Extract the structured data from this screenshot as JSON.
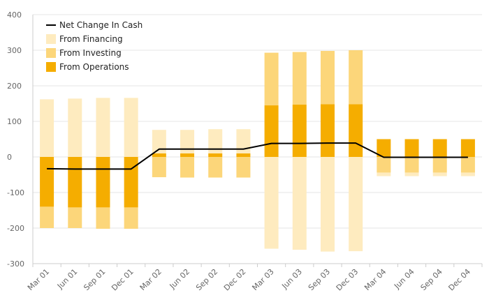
{
  "chart_data": {
    "type": "bar",
    "stacked": true,
    "categories": [
      "Mar 01",
      "Jun 01",
      "Sep 01",
      "Dec 01",
      "Mar 02",
      "Jun 02",
      "Sep 02",
      "Dec 02",
      "Mar 03",
      "Jun 03",
      "Sep 03",
      "Dec 03",
      "Mar 04",
      "Jun 04",
      "Sep 04",
      "Dec 04"
    ],
    "ylim": [
      -300,
      400
    ],
    "yticks": [
      400,
      300,
      200,
      100,
      0,
      -100,
      -200,
      -300
    ],
    "grid": true,
    "legend_position": "top-left",
    "series": [
      {
        "name": "From Operations",
        "kind": "bar",
        "color": "#f5ad00",
        "values": [
          -140,
          -142,
          -142,
          -142,
          10,
          10,
          10,
          10,
          145,
          147,
          148,
          148,
          50,
          50,
          50,
          50
        ]
      },
      {
        "name": "From Investing",
        "kind": "bar",
        "color": "#fcd67a",
        "values": [
          -60,
          -58,
          -60,
          -60,
          -57,
          -58,
          -58,
          -58,
          148,
          148,
          150,
          152,
          -44,
          -44,
          -44,
          -44
        ]
      },
      {
        "name": "From Financing",
        "kind": "bar",
        "color": "#feebbf",
        "values": [
          162,
          164,
          166,
          166,
          66,
          66,
          68,
          68,
          -258,
          -261,
          -266,
          -265,
          -10,
          -10,
          -10,
          -10
        ]
      },
      {
        "name": "Net Change In Cash",
        "kind": "line",
        "color": "#000000",
        "values": [
          -33,
          -34,
          -34,
          -34,
          22,
          22,
          22,
          22,
          38,
          38,
          39,
          39,
          -1,
          -1,
          -1,
          -1
        ]
      }
    ]
  },
  "legend": {
    "items": [
      {
        "label": "Net Change In Cash",
        "color": "#000000",
        "marker": "line"
      },
      {
        "label": "From Financing",
        "color": "#feebbf",
        "marker": "square"
      },
      {
        "label": "From Investing",
        "color": "#fcd67a",
        "marker": "square"
      },
      {
        "label": "From Operations",
        "color": "#f5ad00",
        "marker": "square"
      }
    ]
  }
}
